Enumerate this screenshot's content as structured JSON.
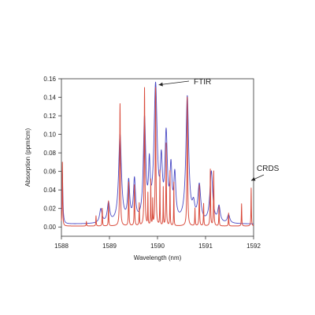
{
  "chart_data": {
    "type": "line",
    "title": "",
    "xlabel": "Wavelength (nm)",
    "ylabel": "Absorption (ppm/cm)",
    "xlim": [
      1588,
      1592
    ],
    "ylim": [
      -0.01,
      0.16
    ],
    "x_ticks": [
      1588,
      1589,
      1590,
      1591,
      1592
    ],
    "y_ticks": [
      0.0,
      0.02,
      0.04,
      0.06,
      0.08,
      0.1,
      0.12,
      0.14,
      0.16
    ],
    "y_tick_labels": [
      "0.00",
      "0.02",
      "0.04",
      "0.06",
      "0.08",
      "0.10",
      "0.12",
      "0.14",
      "0.16"
    ],
    "grid": false,
    "series": [
      {
        "name": "FTIR",
        "color": "#4a4ac4",
        "baseline": 0.003,
        "peaks": [
          [
            1588.02,
            0.058,
            0.012
          ],
          [
            1588.52,
            0.003,
            0.02
          ],
          [
            1588.82,
            0.018,
            0.03
          ],
          [
            1588.98,
            0.024,
            0.03
          ],
          [
            1589.22,
            0.098,
            0.035
          ],
          [
            1589.4,
            0.045,
            0.025
          ],
          [
            1589.52,
            0.047,
            0.025
          ],
          [
            1589.73,
            0.112,
            0.03
          ],
          [
            1589.83,
            0.055,
            0.02
          ],
          [
            1589.96,
            0.148,
            0.04
          ],
          [
            1590.08,
            0.058,
            0.025
          ],
          [
            1590.18,
            0.093,
            0.03
          ],
          [
            1590.28,
            0.056,
            0.025
          ],
          [
            1590.36,
            0.05,
            0.025
          ],
          [
            1590.62,
            0.138,
            0.035
          ],
          [
            1590.75,
            0.018,
            0.03
          ],
          [
            1590.87,
            0.042,
            0.035
          ],
          [
            1591.12,
            0.058,
            0.035
          ],
          [
            1591.28,
            0.02,
            0.03
          ],
          [
            1591.48,
            0.012,
            0.03
          ]
        ]
      },
      {
        "name": "CRDS",
        "color": "#d94b3c",
        "baseline": 0.001,
        "peaks": [
          [
            1588.02,
            0.07,
            0.006
          ],
          [
            1588.52,
            0.006,
            0.005
          ],
          [
            1588.72,
            0.012,
            0.005
          ],
          [
            1588.85,
            0.02,
            0.005
          ],
          [
            1588.98,
            0.028,
            0.005
          ],
          [
            1589.22,
            0.133,
            0.008
          ],
          [
            1589.4,
            0.048,
            0.006
          ],
          [
            1589.52,
            0.045,
            0.006
          ],
          [
            1589.62,
            0.025,
            0.005
          ],
          [
            1589.73,
            0.15,
            0.008
          ],
          [
            1589.8,
            0.035,
            0.004
          ],
          [
            1589.86,
            0.05,
            0.004
          ],
          [
            1589.9,
            0.028,
            0.004
          ],
          [
            1589.96,
            0.15,
            0.008
          ],
          [
            1590.05,
            0.06,
            0.004
          ],
          [
            1590.12,
            0.042,
            0.004
          ],
          [
            1590.18,
            0.09,
            0.006
          ],
          [
            1590.26,
            0.06,
            0.004
          ],
          [
            1590.34,
            0.048,
            0.004
          ],
          [
            1590.62,
            0.14,
            0.008
          ],
          [
            1590.78,
            0.02,
            0.005
          ],
          [
            1590.87,
            0.045,
            0.006
          ],
          [
            1590.96,
            0.025,
            0.005
          ],
          [
            1591.1,
            0.062,
            0.006
          ],
          [
            1591.17,
            0.06,
            0.006
          ],
          [
            1591.28,
            0.022,
            0.005
          ],
          [
            1591.48,
            0.015,
            0.005
          ],
          [
            1591.75,
            0.025,
            0.005
          ],
          [
            1591.95,
            0.042,
            0.005
          ]
        ]
      }
    ],
    "annotations": [
      {
        "label": "FTIR",
        "target_x": 1589.96,
        "target_y": 0.15
      },
      {
        "label": "CRDS",
        "target_x": 1591.95,
        "target_y": 0.045
      }
    ]
  }
}
